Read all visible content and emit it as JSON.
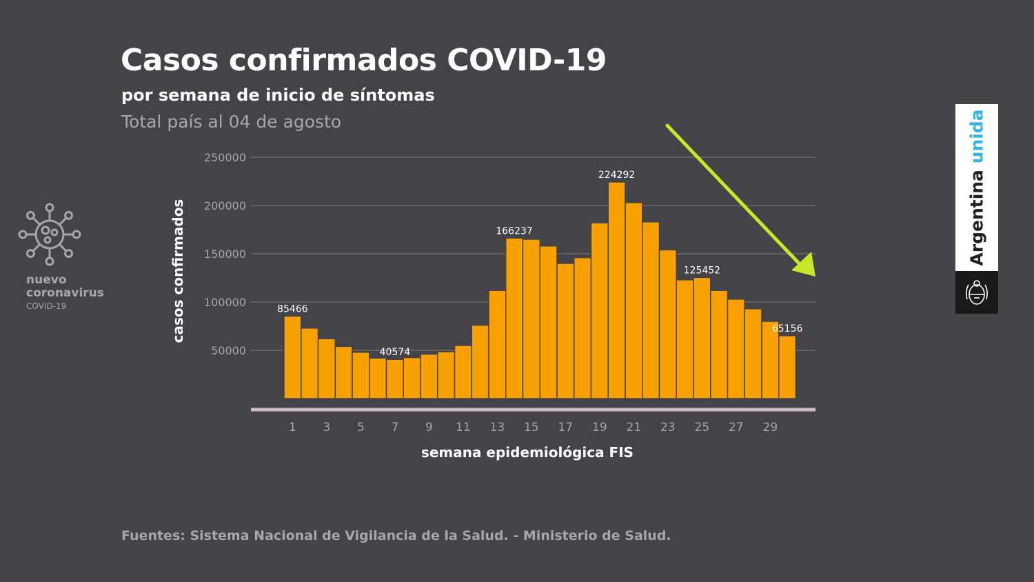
{
  "header": {
    "title": "Casos confirmados COVID-19",
    "subtitle": "por semana de inicio de síntomas",
    "subtitle2": "Total país al 04 de agosto"
  },
  "logo": {
    "line1": "nuevo",
    "line2": "coronavirus",
    "line3": "COVID-19",
    "icon": "virus-icon"
  },
  "brand": {
    "word1": "Argentina",
    "word2": "unida",
    "icon": "national-seal-icon"
  },
  "footer": {
    "source": "Fuentes: Sistema Nacional de Vigilancia de la Salud. - Ministerio de Salud."
  },
  "colors": {
    "background": "#434348",
    "bar": "#f9a100",
    "bar_border": "#434348",
    "arrow": "#c8e62a",
    "grid": "#6a6a70",
    "axis": "#c9c0c4",
    "text": "#ffffff",
    "muted": "#a7a7ab"
  },
  "chart_data": {
    "type": "bar",
    "title": "Casos confirmados COVID-19",
    "xlabel": "semana epidemiológica FIS",
    "ylabel": "casos confirmados",
    "ylim": [
      0,
      250000
    ],
    "yticks": [
      50000,
      100000,
      150000,
      200000,
      250000
    ],
    "xticks": [
      1,
      3,
      5,
      7,
      9,
      11,
      13,
      15,
      17,
      19,
      21,
      23,
      25,
      27,
      29
    ],
    "grid": true,
    "categories": [
      1,
      2,
      3,
      4,
      5,
      6,
      7,
      8,
      9,
      10,
      11,
      12,
      13,
      14,
      15,
      16,
      17,
      18,
      19,
      20,
      21,
      22,
      23,
      24,
      25,
      26,
      27,
      28,
      29,
      30
    ],
    "values": [
      85466,
      73000,
      62000,
      54000,
      48000,
      42000,
      40574,
      42500,
      46000,
      48500,
      55000,
      76000,
      112000,
      166237,
      165000,
      158000,
      140000,
      146000,
      182000,
      224292,
      203000,
      183000,
      154000,
      123000,
      125452,
      112000,
      103000,
      93000,
      80000,
      65156
    ],
    "data_labels": [
      {
        "category": 1,
        "text": "85466"
      },
      {
        "category": 7,
        "text": "40574"
      },
      {
        "category": 14,
        "text": "166237"
      },
      {
        "category": 20,
        "text": "224292"
      },
      {
        "category": 25,
        "text": "125452"
      },
      {
        "category": 30,
        "text": "65156"
      }
    ],
    "annotation": "downward-trend-arrow"
  }
}
